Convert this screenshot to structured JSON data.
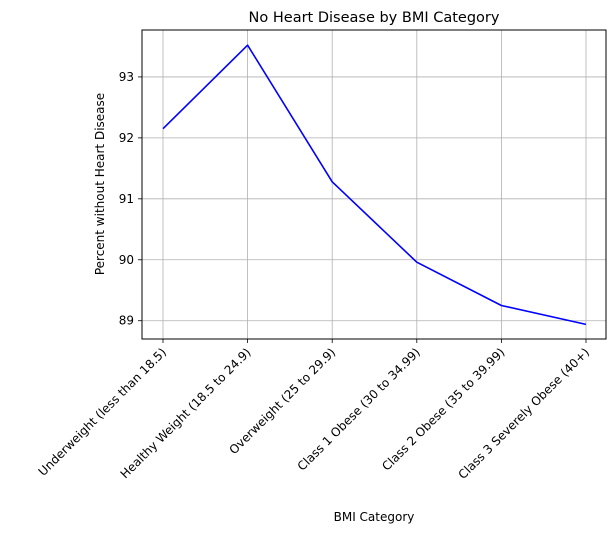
{
  "chart_data": {
    "type": "line",
    "title": "No Heart Disease by BMI Category",
    "xlabel": "BMI Category",
    "ylabel": "Percent without Heart Disease",
    "categories": [
      "Underweight (less than 18.5)",
      "Healthy Weight (18.5 to 24.9)",
      "Overweight (25 to 29.9)",
      "Class 1 Obese (30 to 34.99)",
      "Class 2 Obese (35 to 39.99)",
      "Class 3 Severely Obese (40+)"
    ],
    "series": [
      {
        "values": [
          92.15,
          93.52,
          91.28,
          89.96,
          89.25,
          88.94
        ],
        "color": "#0000ff"
      }
    ],
    "yticks": [
      "89",
      "90",
      "91",
      "92",
      "93"
    ],
    "ylim": [
      88.7,
      93.77
    ],
    "grid": true,
    "legend": "none"
  }
}
